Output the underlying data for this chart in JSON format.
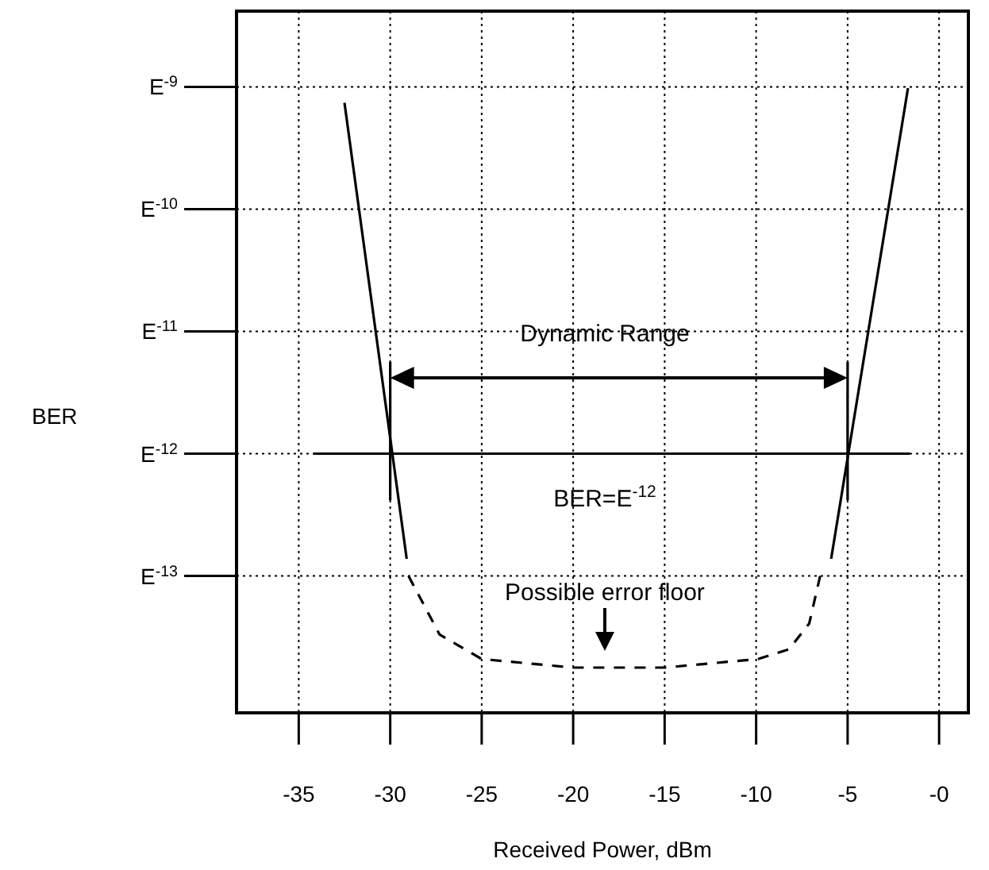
{
  "chart_data": {
    "type": "line",
    "xlabel": "Received Power, dBm",
    "ylabel": "BER",
    "grid": true,
    "xlim": [
      -38.4,
      1.6
    ],
    "ylim": [
      -14.12,
      -8.38
    ],
    "xticks": [
      -35,
      -30,
      -25,
      -20,
      -15,
      -10,
      -5,
      {
        "value": 0,
        "label": "-0"
      }
    ],
    "yticks": [
      {
        "value": -9,
        "label": "E$^{-9}$"
      },
      {
        "value": -10,
        "label": "E$^{-10}$"
      },
      {
        "value": -11,
        "label": "E$^{-11}$"
      },
      {
        "value": -12,
        "label": "E$^{-12}$"
      },
      {
        "value": -13,
        "label": "E$^{-13}$"
      }
    ],
    "series": [
      {
        "color": "#000000",
        "x": [
          -32.5,
          -29.1
        ],
        "values": [
          -9.13,
          -12.86
        ]
      },
      {
        "color": "#000000",
        "x": [
          -1.7,
          -5.9
        ],
        "values": [
          -9.01,
          -12.86
        ]
      },
      {
        "color": "#000000",
        "x": [
          -34.2,
          -1.6
        ],
        "values": [
          -12,
          -12
        ]
      },
      {
        "color": "#000000",
        "x": [
          -30,
          -30,
          -17.5,
          -5,
          -5
        ],
        "values": [
          -11.25,
          -12.38,
          null,
          -11.25,
          -12.38
        ]
      },
      {
        "color": "#000000",
        "line_style": "dashed",
        "x": [
          -29,
          -27.3,
          -25,
          -20,
          -15,
          -9.9,
          -8.2,
          -7.1,
          -6.5
        ],
        "values": [
          -13,
          -13.48,
          -13.68,
          -13.75,
          -13.75,
          -13.68,
          -13.6,
          -13.39,
          -13
        ]
      }
    ],
    "annotations": [
      "Dynamic Range",
      "BER=E$^{-12}$",
      "Possible error floor"
    ]
  }
}
